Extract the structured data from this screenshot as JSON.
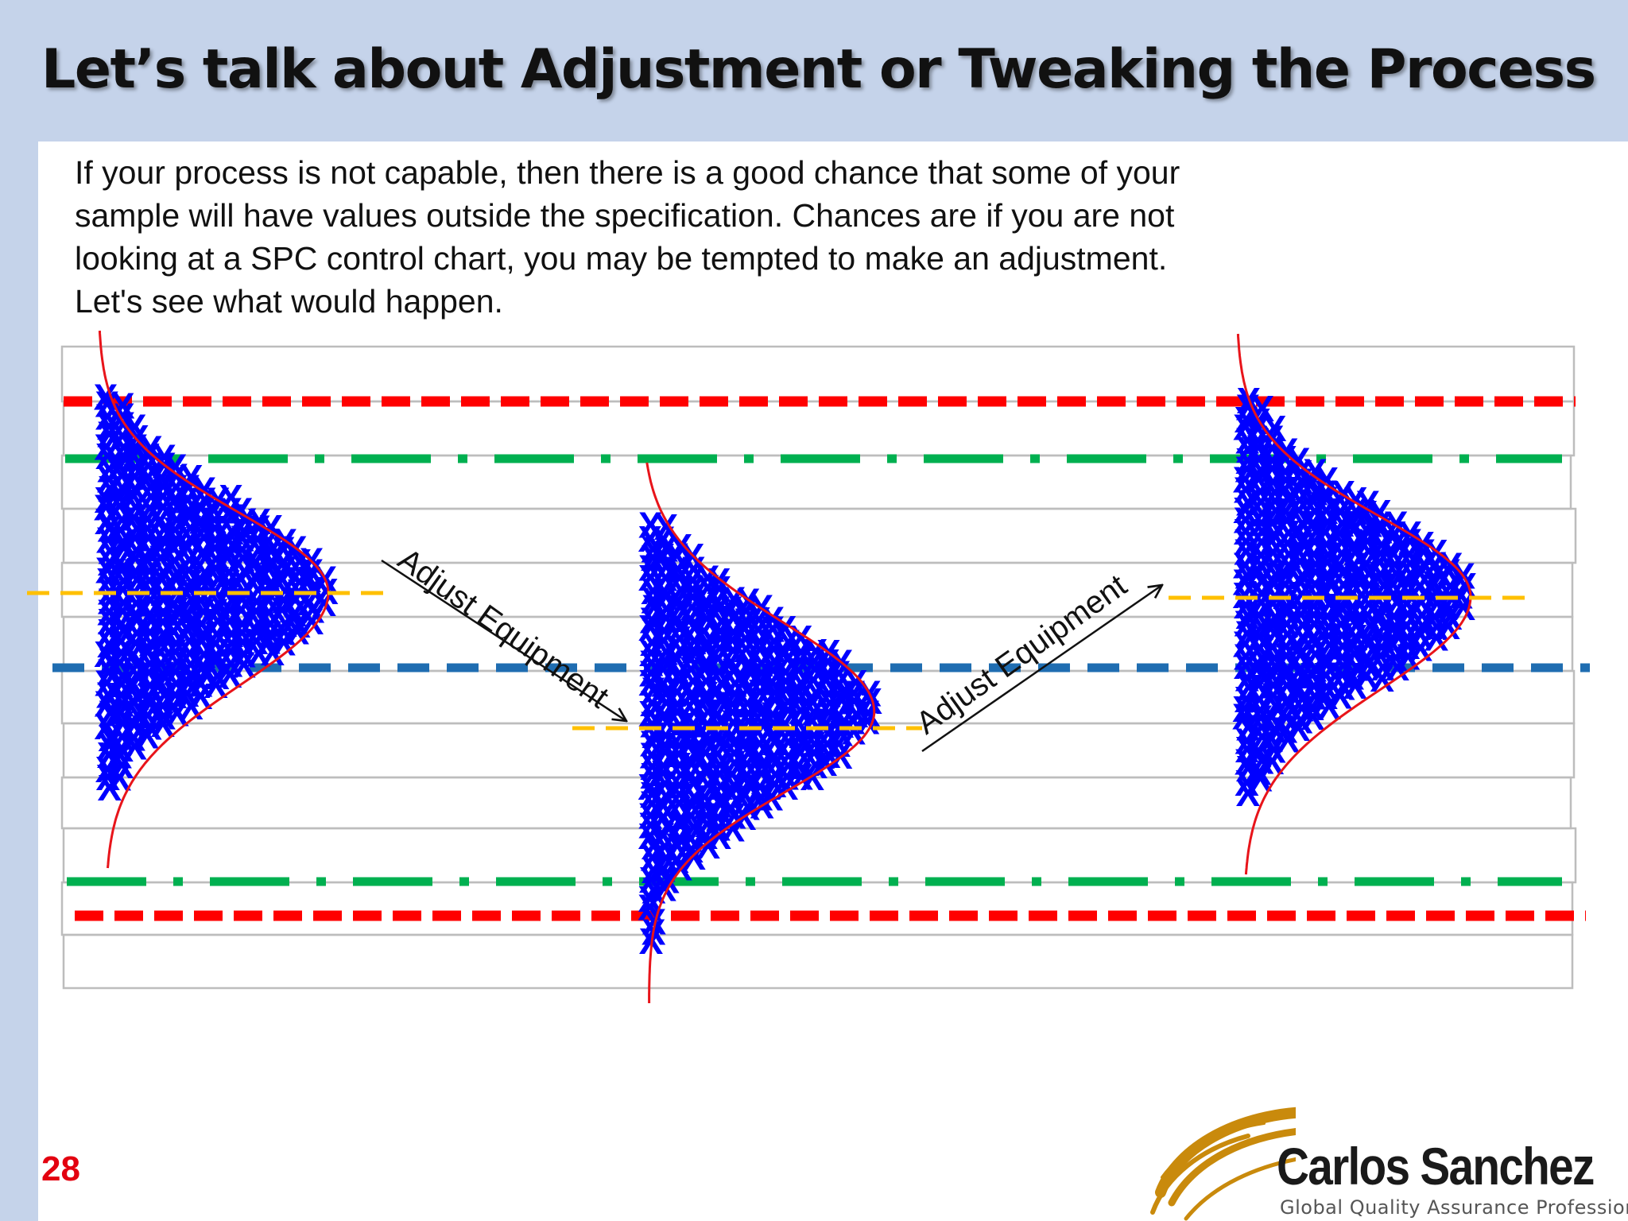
{
  "slide": {
    "title": "Let’s talk about Adjustment or Tweaking the Process",
    "number": "28",
    "intro_lines": [
      "If your process is not capable, then there is a good chance that some of your",
      "sample will have values outside the specification.  Chances are if you are not",
      "looking at a SPC control chart, you may be tempted to make an adjustment.",
      "Let's see what would happen."
    ]
  },
  "diagram": {
    "annotations": {
      "adjust_down": "Adjust Equipment",
      "adjust_up": "Adjust Equipment"
    },
    "marker_symbol": "X",
    "distributions": [
      {
        "name": "original",
        "mean_level": "above-target"
      },
      {
        "name": "after-first-adjustment",
        "mean_level": "below-target"
      },
      {
        "name": "after-second-adjustment",
        "mean_level": "above-target"
      }
    ],
    "colors": {
      "spec_limit": "#ff0000",
      "control_limit": "#00b050",
      "target": "#1f6db1",
      "mean": "#ffc000",
      "marker": "#0000ff",
      "curve": "#e8141a"
    }
  },
  "logo": {
    "name": "Carlos Sanchez",
    "tagline": "Global Quality Assurance Professional",
    "swoosh_color": "#c98a0c"
  }
}
